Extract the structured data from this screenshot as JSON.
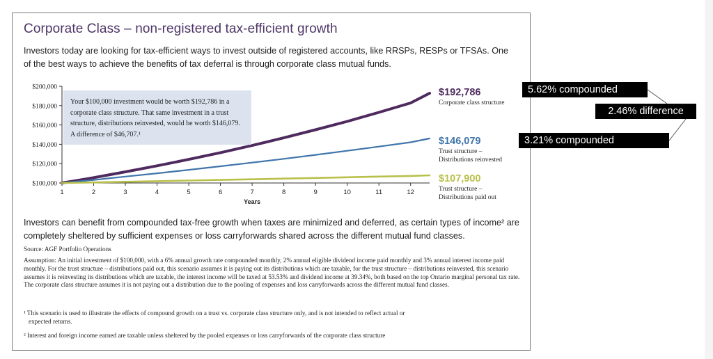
{
  "title": "Corporate Class – non-registered tax-efficient growth",
  "intro": "Investors today are looking for tax-efficient ways to invest outside of registered accounts, like RRSPs, RESPs or TFSAs. One of the best ways to achieve the benefits of tax deferral is through corporate class mutual funds.",
  "callout": "Your $100,000 investment would be worth $192,786 in a corporate class structure. That same investment in a trust structure, distributions reinvested, would be worth $146,079. A difference of $46,707.¹",
  "chart_data": {
    "type": "line",
    "xlabel": "Years",
    "ylabel": "",
    "x_ticks": [
      1,
      2,
      3,
      4,
      5,
      6,
      7,
      8,
      9,
      10,
      11,
      12
    ],
    "y_ticks": [
      "$100,000",
      "$120,000",
      "$140,000",
      "$160,000",
      "$180,000",
      "$200,000"
    ],
    "xlim": [
      1,
      12.6
    ],
    "ylim": [
      100000,
      200000
    ],
    "grid": false,
    "series": [
      {
        "name": "Corporate class structure",
        "end_label": "$192,786",
        "color": "#4e2a5e",
        "x": [
          1,
          2,
          3,
          4,
          5,
          6,
          7,
          8,
          9,
          10,
          11,
          12,
          12.6
        ],
        "y": [
          100000,
          105500,
          111500,
          117800,
          124400,
          131400,
          138800,
          146700,
          155000,
          163700,
          173000,
          182700,
          192786
        ]
      },
      {
        "name": "Trust structure – Distributions reinvested",
        "end_label": "$146,079",
        "color": "#3f75ab",
        "x": [
          1,
          2,
          3,
          4,
          5,
          6,
          7,
          8,
          9,
          10,
          11,
          12,
          12.6
        ],
        "y": [
          100000,
          103200,
          106600,
          110000,
          113600,
          117300,
          121100,
          125000,
          129100,
          133300,
          137600,
          142100,
          146079
        ]
      },
      {
        "name": "Trust structure – Distributions paid out",
        "end_label": "$107,900",
        "color": "#b8c04a",
        "x": [
          1,
          2,
          3,
          4,
          5,
          6,
          7,
          8,
          9,
          10,
          11,
          12,
          12.6
        ],
        "y": [
          100000,
          100600,
          101200,
          101900,
          102500,
          103200,
          103800,
          104500,
          105200,
          105900,
          106600,
          107300,
          107900
        ]
      }
    ]
  },
  "end_labels": [
    {
      "value": "$192,786",
      "desc": "Corporate class structure"
    },
    {
      "value": "$146,079",
      "desc1": "Trust structure –",
      "desc2": "Distributions reinvested"
    },
    {
      "value": "$107,900",
      "desc1": "Trust structure –",
      "desc2": "Distributions paid out"
    }
  ],
  "body2": "Investors can benefit from compounded tax-free growth when taxes are minimized and deferred, as certain types of income² are completely sheltered by sufficient expenses or loss carryforwards shared across the different mutual fund classes.",
  "source": "Source: AGF Portfolio Operations",
  "assumption": "Assumption: An initial investment of $100,000, with a 6% annual growth rate compounded monthly, 2% annual eligible dividend income paid monthly and 3% annual interest income paid monthly. For the trust structure – distributions paid out, this scenario assumes it is paying out its distributions which are taxable, for the trust structure – distributions reinvested, this scenario assumes it is reinvesting its distributions which are taxable, the interest income will be taxed at 53.53% and dividend income at 39.34%, both based on the top Ontario marginal personal tax rate. The corporate class structure assumes it is not paying out a distribution due to the pooling of expenses and loss carryforwards across the different mutual fund classes.",
  "footnote1_a": "¹ This scenario is used to illustrate the effects of compound growth on a trust vs. corporate class structure only, and is not intended to reflect actual or",
  "footnote1_b": "expected returns.",
  "footnote2": "² Interest and foreign income earned are taxable unless sheltered by the pooled expenses or loss carryforwards of the corporate class structure",
  "annotations": {
    "top": "5.62% compounded",
    "middle": "2.46% difference",
    "bottom": "3.21% compounded"
  }
}
